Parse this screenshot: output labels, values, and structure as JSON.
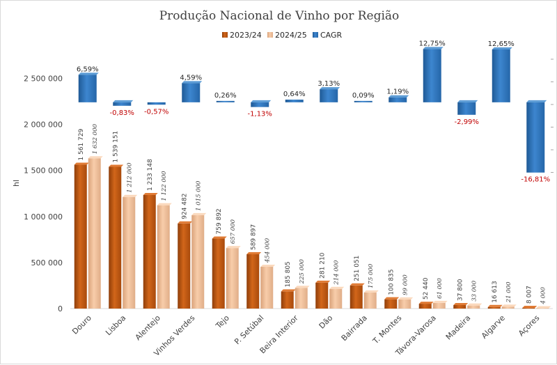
{
  "chart_data": {
    "type": "bar",
    "title": "Produção Nacional de Vinho por Região",
    "ylabel": "hl",
    "ylim": [
      0,
      2700000
    ],
    "yticks": [
      "0",
      "500 000",
      "1 000 000",
      "1 500 000",
      "2 000 000",
      "2 500 000"
    ],
    "ytick_values": [
      0,
      500000,
      1000000,
      1500000,
      2000000,
      2500000
    ],
    "legend_position": "top-center",
    "grid": false,
    "categories": [
      "Douro",
      "Lisboa",
      "Alentejo",
      "Vinhos Verdes",
      "Tejo",
      "P. Setúbal",
      "Beira Interior",
      "Dão",
      "Bairrada",
      "T. Montes",
      "Távora-Varosa",
      "Madeira",
      "Algarve",
      "Açores"
    ],
    "series": [
      {
        "name": "2023/24",
        "color": "#c55a11",
        "values": [
          1561729,
          1539151,
          1233148,
          924482,
          759892,
          589897,
          185805,
          281210,
          251051,
          100835,
          52440,
          37800,
          16613,
          8007
        ],
        "labels": [
          "1 561 729",
          "1 539 151",
          "1 233 148",
          "924 482",
          "759 892",
          "589 897",
          "185 805",
          "281 210",
          "251 051",
          "100 835",
          "52 440",
          "37 800",
          "16 613",
          "8 007"
        ]
      },
      {
        "name": "2024/25",
        "color": "#f4b183",
        "values": [
          1632000,
          1212000,
          1122000,
          1015000,
          657000,
          454000,
          225000,
          214000,
          175000,
          99000,
          61000,
          33000,
          21000,
          4000
        ],
        "labels": [
          "1 632 000",
          "1 212 000",
          "1 122 000",
          "1 015 000",
          "657 000",
          "454 000",
          "225 000",
          "214 000",
          "175 000",
          "99 000",
          "61 000",
          "33 000",
          "21 000",
          "4 000"
        ]
      },
      {
        "name": "CAGR",
        "color": "#2e75b6",
        "axis": "secondary",
        "baseline_on_primary": 2240000,
        "values": [
          6.59,
          -0.83,
          -0.57,
          4.59,
          0.26,
          -1.13,
          0.64,
          3.13,
          0.09,
          1.19,
          12.75,
          -2.99,
          12.65,
          -16.81
        ],
        "labels": [
          "6,59%",
          "-0,83%",
          "-0,57%",
          "4,59%",
          "0,26%",
          "-1,13%",
          "0,64%",
          "3,13%",
          "0,09%",
          "1,19%",
          "12,75%",
          "-2,99%",
          "12,65%",
          "-16,81%"
        ]
      }
    ]
  }
}
